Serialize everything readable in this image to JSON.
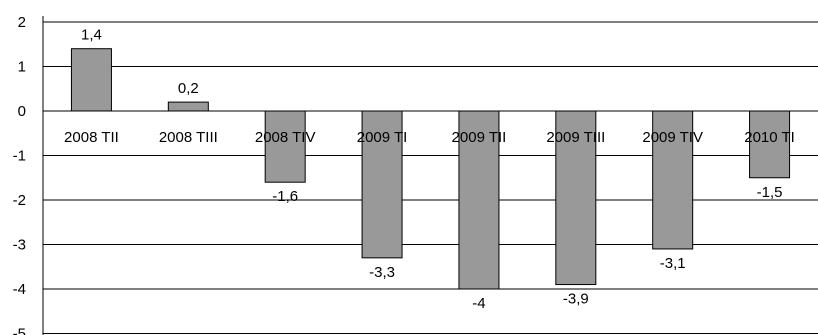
{
  "chart_data": {
    "type": "bar",
    "categories": [
      "2008 TII",
      "2008 TIII",
      "2008 TIV",
      "2009 TI",
      "2009 TII",
      "2009 TIII",
      "2009 TIV",
      "2010 TI"
    ],
    "values": [
      1.4,
      0.2,
      -1.6,
      -3.3,
      -4,
      -3.9,
      -3.1,
      -1.5
    ],
    "data_labels": [
      "1,4",
      "0,2",
      "-1,6",
      "-3,3",
      "-4",
      "-3,9",
      "-3,1",
      "-1,5"
    ],
    "yticks": [
      2,
      1,
      0,
      -1,
      -2,
      -3,
      -4,
      -5
    ],
    "ytick_labels": [
      "2",
      "1",
      "0",
      "-1",
      "-2",
      "-3",
      "-4",
      "-5"
    ],
    "ylim": [
      -5,
      2
    ],
    "grid": "horizontal",
    "legend": "none",
    "title": "",
    "xlabel": "",
    "ylabel": "",
    "colors": {
      "bar_fill": "#999999",
      "bar_stroke": "#000000",
      "grid": "#000000"
    }
  }
}
